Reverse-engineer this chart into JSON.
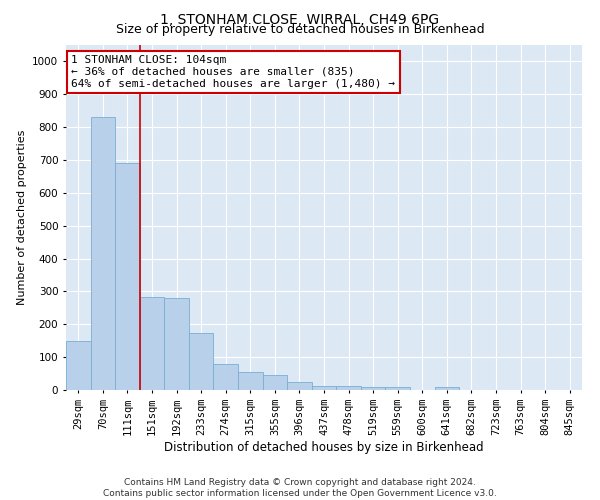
{
  "title": "1, STONHAM CLOSE, WIRRAL, CH49 6PG",
  "subtitle": "Size of property relative to detached houses in Birkenhead",
  "xlabel": "Distribution of detached houses by size in Birkenhead",
  "ylabel": "Number of detached properties",
  "categories": [
    "29sqm",
    "70sqm",
    "111sqm",
    "151sqm",
    "192sqm",
    "233sqm",
    "274sqm",
    "315sqm",
    "355sqm",
    "396sqm",
    "437sqm",
    "478sqm",
    "519sqm",
    "559sqm",
    "600sqm",
    "641sqm",
    "682sqm",
    "723sqm",
    "763sqm",
    "804sqm",
    "845sqm"
  ],
  "values": [
    150,
    830,
    690,
    283,
    280,
    175,
    78,
    55,
    45,
    23,
    12,
    12,
    10,
    10,
    0,
    10,
    0,
    0,
    0,
    0,
    0
  ],
  "bar_color": "#b8d0ea",
  "bar_edge_color": "#7aaed0",
  "vline_x": 2.5,
  "vline_color": "#cc0000",
  "annotation_text": "1 STONHAM CLOSE: 104sqm\n← 36% of detached houses are smaller (835)\n64% of semi-detached houses are larger (1,480) →",
  "annotation_box_color": "#ffffff",
  "annotation_box_edge_color": "#cc0000",
  "ylim": [
    0,
    1050
  ],
  "yticks": [
    0,
    100,
    200,
    300,
    400,
    500,
    600,
    700,
    800,
    900,
    1000
  ],
  "bg_color": "#dde8f5",
  "footer_text": "Contains HM Land Registry data © Crown copyright and database right 2024.\nContains public sector information licensed under the Open Government Licence v3.0.",
  "title_fontsize": 10,
  "subtitle_fontsize": 9,
  "xlabel_fontsize": 8.5,
  "ylabel_fontsize": 8,
  "tick_fontsize": 7.5,
  "annotation_fontsize": 8,
  "footer_fontsize": 6.5
}
